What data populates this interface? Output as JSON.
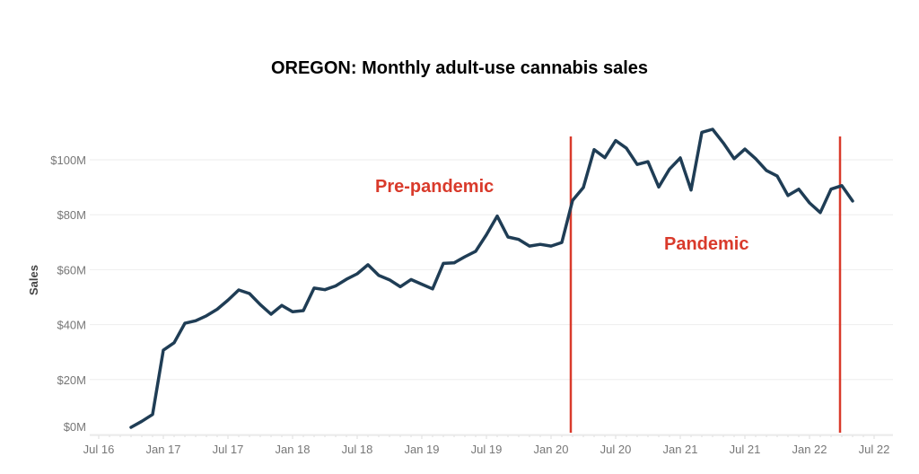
{
  "chart_data": {
    "type": "line",
    "title": "OREGON: Monthly adult-use cannabis sales",
    "ylabel": "Sales",
    "xlabel": "",
    "ylim": [
      0,
      110
    ],
    "y_unit": "$M",
    "yticks": [
      0,
      20,
      40,
      60,
      80,
      100
    ],
    "ytick_labels": [
      "$0M",
      "$20M",
      "$40M",
      "$60M",
      "$80M",
      "$100M"
    ],
    "xticks": [
      "2016-07",
      "2017-01",
      "2017-07",
      "2018-01",
      "2018-07",
      "2019-01",
      "2019-07",
      "2020-01",
      "2020-07",
      "2021-01",
      "2021-07",
      "2022-01",
      "2022-07"
    ],
    "xtick_labels": [
      "Jul 16",
      "Jan 17",
      "Jul 17",
      "Jan 18",
      "Jul 18",
      "Jan 19",
      "Jul 19",
      "Jan 20",
      "Jul 20",
      "Jan 21",
      "Jul 21",
      "Jan 22",
      "Jul 22"
    ],
    "grid": "horizontal",
    "line_color": "#1f3d55",
    "annotation_color": "#d93a2b",
    "series": [
      {
        "start": "2016-10",
        "frequency": "monthly",
        "values": [
          2.6,
          4.8,
          7.3,
          30.7,
          33.4,
          40.5,
          41.4,
          43.2,
          45.6,
          48.9,
          52.6,
          51.3,
          47.3,
          43.8,
          47.0,
          44.7,
          45.1,
          53.3,
          52.7,
          54.1,
          56.5,
          58.5,
          61.8,
          57.9,
          56.3,
          53.8,
          56.4,
          54.7,
          53.0,
          62.3,
          62.5,
          64.7,
          66.7,
          72.7,
          79.5,
          71.9,
          71.0,
          68.6,
          69.2,
          68.6,
          69.9,
          85.2,
          89.9,
          103.7,
          100.8,
          107.0,
          104.2,
          98.3,
          99.3,
          90.1,
          96.6,
          100.7,
          89.0,
          110.0,
          111.1,
          106.1,
          100.4,
          103.9,
          100.4,
          96.1,
          94.1,
          87.0,
          89.3,
          84.3,
          80.8,
          89.3,
          90.6,
          85.0
        ]
      }
    ],
    "vertical_markers": [
      "2020-03",
      "2022-04"
    ],
    "annotations": [
      "Pre-pandemic",
      "Pandemic"
    ]
  }
}
